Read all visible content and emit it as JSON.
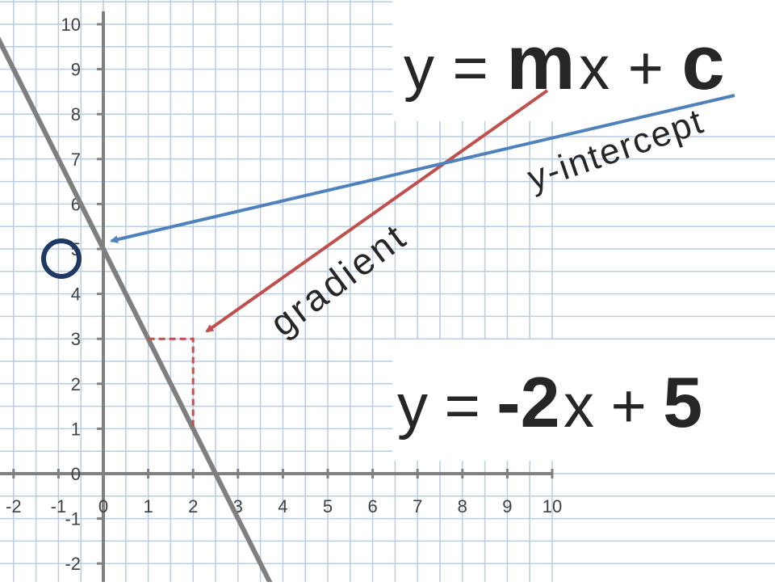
{
  "chart_data": {
    "type": "line",
    "title": "",
    "xlabel": "",
    "ylabel": "",
    "xlim": [
      -2.4,
      10.3
    ],
    "ylim": [
      -2.5,
      10.3
    ],
    "grid": true,
    "x_ticks": [
      -2,
      -1,
      0,
      1,
      2,
      3,
      4,
      5,
      6,
      7,
      8,
      9,
      10
    ],
    "y_ticks": [
      -2,
      -1,
      0,
      1,
      2,
      3,
      4,
      5,
      6,
      7,
      8,
      9,
      10
    ],
    "x_tick_labels": [
      "-2",
      "-1",
      "0",
      "1",
      "2",
      "3",
      "4",
      "5",
      "6",
      "7",
      "8",
      "9",
      "10"
    ],
    "y_tick_labels": [
      "-2",
      "-1",
      "0",
      "1",
      "2",
      "3",
      "4",
      "5",
      "6",
      "7",
      "8",
      "9",
      "10"
    ],
    "series": [
      {
        "color": "#7f7f7f",
        "slope": -2,
        "intercept": 5,
        "x": [
          -2.4,
          3.75
        ],
        "y": [
          9.8,
          -2.5
        ]
      }
    ],
    "y_intercept_marker": {
      "x": 0,
      "y": 5,
      "color": "#1f3864"
    },
    "gradient_triangle": {
      "vertices": [
        [
          1,
          3
        ],
        [
          2,
          3
        ],
        [
          2,
          1
        ]
      ],
      "color": "#c0504d",
      "style": "dashed"
    }
  },
  "annotations": {
    "general_equation": {
      "y": "y",
      "eq": "=",
      "m": "m",
      "x": "x",
      "plus": "+",
      "c": "c"
    },
    "specific_equation": {
      "y": "y",
      "eq": "=",
      "m": "-2",
      "x": "x",
      "plus": "+",
      "c": "5"
    },
    "gradient_label": "gradient",
    "intercept_label": "y-intercept"
  },
  "colors": {
    "grid": "#b8cce4",
    "axis": "#808080",
    "line": "#7f7f7f",
    "gradient_arrow": "#c0504d",
    "intercept_arrow": "#4f81bd",
    "circle": "#1f3864",
    "text": "#262626"
  }
}
